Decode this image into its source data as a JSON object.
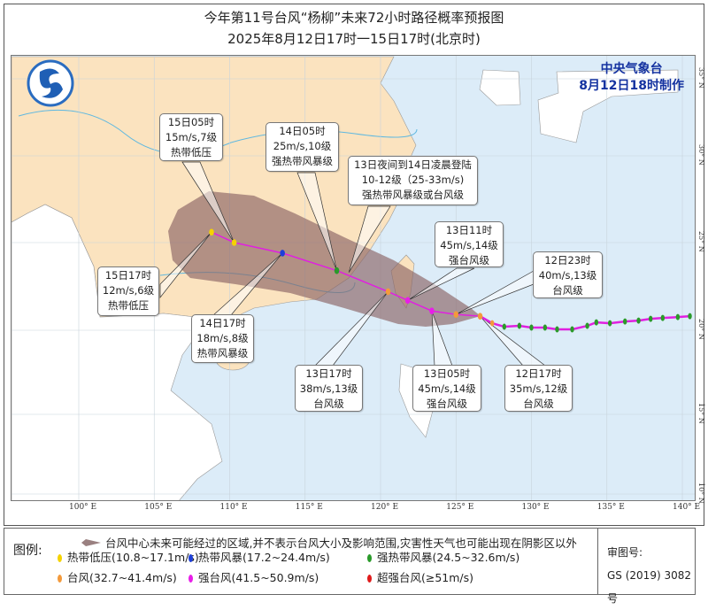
{
  "title": "今年第11号台风“杨柳”未来72小时路径概率预报图",
  "subtitle": "2025年8月12日17时一15日17时(北京时)",
  "agency": {
    "name": "中央气象台",
    "issued": "8月12日18时制作"
  },
  "axes": {
    "lon_labels": [
      "100° E",
      "105° E",
      "110° E",
      "115° E",
      "120° E",
      "125° E",
      "130° E",
      "135° E",
      "140° E"
    ],
    "lat_labels": [
      "35° N",
      "30° N",
      "25° N",
      "20° N",
      "15° N",
      "10° N"
    ]
  },
  "colors": {
    "land_china": "#fbe3bf",
    "land_foreign": "#ffffff",
    "sea": "#dcecf8",
    "track": "#e020e0",
    "cone": "#8a6464",
    "river": "#5fb8e0"
  },
  "forecast_points": [
    {
      "time": "12日17时",
      "wind": "35m/s,12级",
      "grade": "台风级",
      "color": "#f39a3c",
      "lon": 126.6,
      "lat": 20.8
    },
    {
      "time": "12日23时",
      "wind": "40m/s,13级",
      "grade": "台风级",
      "color": "#f39a3c",
      "lon": 125.0,
      "lat": 20.9
    },
    {
      "time": "13日05时",
      "wind": "45m/s,14级",
      "grade": "强台风级",
      "color": "#e81ee8",
      "lon": 123.4,
      "lat": 21.1
    },
    {
      "time": "13日11时",
      "wind": "45m/s,14级",
      "grade": "强台风级",
      "color": "#e81ee8",
      "lon": 121.8,
      "lat": 21.7
    },
    {
      "time": "13日17时",
      "wind": "38m/s,13级",
      "grade": "台风级",
      "color": "#f39a3c",
      "lon": 120.5,
      "lat": 22.2
    },
    {
      "time": "14日05时",
      "wind": "25m/s,10级",
      "grade": "强热带风暴级",
      "color": "#2a9a2a",
      "lon": 117.1,
      "lat": 23.4
    },
    {
      "time": "14日17时",
      "wind": "18m/s,8级",
      "grade": "热带风暴级",
      "color": "#1d3fd8",
      "lon": 113.5,
      "lat": 24.4
    },
    {
      "time": "15日05时",
      "wind": "15m/s,7级",
      "grade": "热带低压",
      "color": "#f5d200",
      "lon": 110.3,
      "lat": 25.0
    },
    {
      "time": "15日17时",
      "wind": "12m/s,6级",
      "grade": "热带低压",
      "color": "#f5d200",
      "lon": 108.8,
      "lat": 25.6
    }
  ],
  "landfall": {
    "line1": "13日夜间到14日凌晨登陆",
    "line2": "10-12级（25-33m/s)",
    "line3": "强热带风暴级或台风级",
    "lon": 117.9,
    "lat": 23.3
  },
  "past_track": [
    [
      126.6,
      20.8,
      "#f39a3c"
    ],
    [
      127.4,
      20.4,
      "#f39a3c"
    ],
    [
      128.2,
      20.2,
      "#2a9a2a"
    ],
    [
      129.2,
      20.25,
      "#2a9a2a"
    ],
    [
      130.0,
      20.15,
      "#2a9a2a"
    ],
    [
      130.9,
      20.15,
      "#2a9a2a"
    ],
    [
      131.7,
      20.05,
      "#2a9a2a"
    ],
    [
      132.7,
      20.05,
      "#2a9a2a"
    ],
    [
      133.7,
      20.25,
      "#2a9a2a"
    ],
    [
      134.3,
      20.45,
      "#2a9a2a"
    ],
    [
      135.2,
      20.4,
      "#2a9a2a"
    ],
    [
      136.2,
      20.5,
      "#2a9a2a"
    ],
    [
      137.1,
      20.55,
      "#2a9a2a"
    ],
    [
      137.9,
      20.65,
      "#2a9a2a"
    ],
    [
      138.7,
      20.7,
      "#2a9a2a"
    ],
    [
      139.7,
      20.75,
      "#2a9a2a"
    ],
    [
      140.5,
      20.8,
      "#2a9a2a"
    ]
  ],
  "legend": {
    "label": "图例:",
    "cone_desc": "台风中心未来可能经过的区域,并不表示台风大小及影响范围,灾害性天气也可能出现在阴影区以外",
    "items": [
      {
        "label": "热带低压(10.8~17.1m/s)",
        "color": "#f5d200"
      },
      {
        "label": "热带风暴(17.2~24.4m/s)",
        "color": "#1d3fd8"
      },
      {
        "label": "强热带风暴(24.5~32.6m/s)",
        "color": "#2a9a2a"
      },
      {
        "label": "台风(32.7~41.4m/s)",
        "color": "#f39a3c"
      },
      {
        "label": "强台风(41.5~50.9m/s)",
        "color": "#e81ee8"
      },
      {
        "label": "超强台风(≥51m/s)",
        "color": "#e01b1b"
      }
    ]
  },
  "approval": {
    "label": "审图号:",
    "number": "GS (2019) 3082号"
  }
}
